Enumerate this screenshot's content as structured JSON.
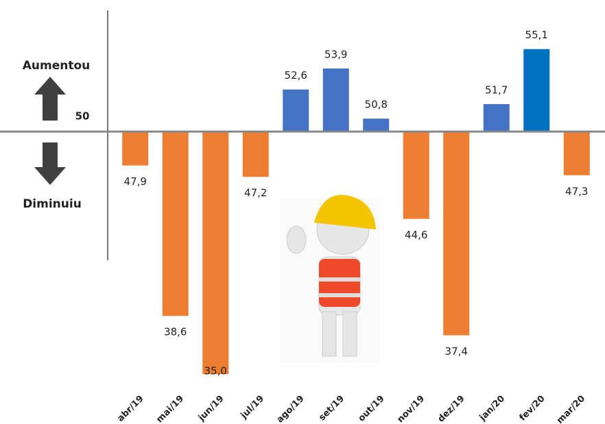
{
  "chart_data": {
    "type": "bar",
    "categories": [
      "abr/19",
      "mai/19",
      "jun/19",
      "jul/19",
      "ago/19",
      "set/19",
      "out/19",
      "nov/19",
      "dez/19",
      "jan/20",
      "fev/20",
      "mar/20"
    ],
    "values": [
      47.9,
      38.6,
      35.0,
      47.2,
      52.6,
      53.9,
      50.8,
      44.6,
      37.4,
      51.7,
      55.1,
      47.3
    ],
    "value_labels": [
      "47,9",
      "38,6",
      "35,0",
      "47,2",
      "52,6",
      "53,9",
      "50,8",
      "44,6",
      "37,4",
      "51,7",
      "55,1",
      "47,3"
    ],
    "colors": [
      "#ed7d31",
      "#ed7d31",
      "#ed7d31",
      "#ed7d31",
      "#4472c4",
      "#4472c4",
      "#4472c4",
      "#ed7d31",
      "#ed7d31",
      "#4472c4",
      "#0070c0",
      "#ed7d31"
    ],
    "ylim": [
      34.5,
      57.5
    ],
    "yticks": [
      50
    ],
    "annotations": [
      "Aumentou",
      "Diminuiu"
    ]
  }
}
